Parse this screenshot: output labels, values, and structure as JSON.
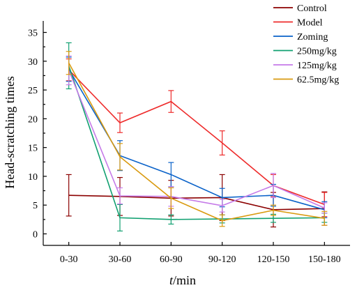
{
  "chart_data": {
    "type": "line",
    "xlabel_italic": "t",
    "xlabel_rest": "/min",
    "ylabel": "Head-scratching times",
    "categories": [
      "0-30",
      "30-60",
      "60-90",
      "90-120",
      "120-150",
      "150-180"
    ],
    "ylim": [
      -2,
      37
    ],
    "yticks": [
      0,
      5,
      10,
      15,
      20,
      25,
      30,
      35
    ],
    "legend_placement": "top-right",
    "series": [
      {
        "name": "Control",
        "color": "#8b0000",
        "values": [
          6.7,
          6.5,
          6.2,
          6.3,
          4.2,
          4.4
        ],
        "errors": [
          3.6,
          3.3,
          3.1,
          4.0,
          3.0,
          2.9
        ]
      },
      {
        "name": "Model",
        "color": "#ee2b2b",
        "values": [
          28.5,
          19.3,
          23.0,
          15.8,
          8.4,
          5.1
        ],
        "errors": [
          1.9,
          1.7,
          1.9,
          2.1,
          1.9,
          2.1
        ]
      },
      {
        "name": "Zoming",
        "color": "#0a62c9",
        "values": [
          28.6,
          13.6,
          10.3,
          6.3,
          6.7,
          4.2
        ],
        "errors": [
          2.1,
          2.6,
          2.1,
          1.6,
          1.9,
          1.4
        ]
      },
      {
        "name": "250mg/kg",
        "color": "#10a070",
        "values": [
          29.2,
          2.8,
          2.5,
          2.6,
          2.7,
          2.8
        ],
        "errors": [
          4.0,
          2.3,
          0.8,
          0.7,
          0.7,
          0.8
        ]
      },
      {
        "name": "125mg/kg",
        "color": "#c57ae8",
        "values": [
          28.4,
          6.6,
          6.5,
          4.9,
          8.4,
          4.5
        ],
        "errors": [
          2.5,
          1.4,
          1.7,
          1.1,
          2.1,
          0.9
        ]
      },
      {
        "name": "62.5mg/kg",
        "color": "#d99a10",
        "values": [
          29.7,
          13.4,
          6.2,
          2.3,
          4.1,
          2.7
        ],
        "errors": [
          2.0,
          2.3,
          1.8,
          1.0,
          0.9,
          1.2
        ]
      }
    ]
  }
}
